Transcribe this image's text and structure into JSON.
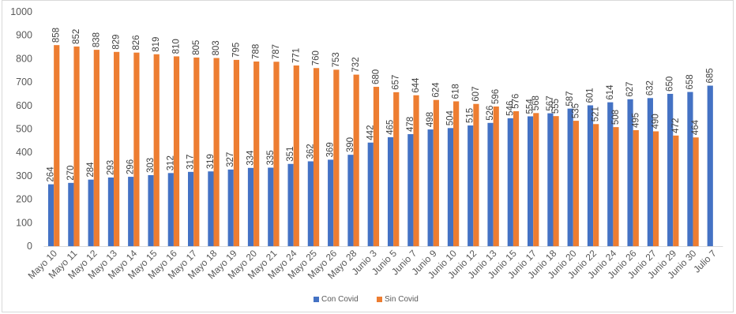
{
  "chart_data": {
    "type": "bar",
    "categories": [
      "Mayo 10",
      "Mayo 11",
      "Mayo 12",
      "Mayo 13",
      "Mayo 14",
      "Mayo 15",
      "Mayo 16",
      "Mayo 17",
      "Mayo 18",
      "Mayo 19",
      "Mayo 20",
      "Mayo 21",
      "Mayo 24",
      "Mayo 25",
      "Mayo 26",
      "Mayo 28",
      "Junio 3",
      "Junio 5",
      "Junio 7",
      "Junio 9",
      "Junio 10",
      "Junio 12",
      "Junio 13",
      "Junio 15",
      "Junio 17",
      "Junio 18",
      "Junio 20",
      "Junio 22",
      "Junio 24",
      "Junio 26",
      "Junio 27",
      "Junio 29",
      "Junio 30",
      "Julio 7"
    ],
    "series": [
      {
        "name": "Con Covid",
        "color": "#4472C4",
        "values": [
          264,
          270,
          284,
          293,
          296,
          303,
          312,
          317,
          319,
          327,
          334,
          335,
          351,
          362,
          369,
          390,
          442,
          465,
          478,
          498,
          504,
          515,
          526,
          546,
          554,
          567,
          587,
          601,
          614,
          627,
          632,
          650,
          658,
          685
        ]
      },
      {
        "name": "Sin Covid",
        "color": "#ED7D31",
        "values": [
          858,
          852,
          838,
          829,
          826,
          819,
          810,
          805,
          803,
          795,
          788,
          787,
          771,
          760,
          753,
          732,
          680,
          657,
          644,
          624,
          618,
          607,
          596,
          576,
          568,
          555,
          535,
          521,
          508,
          495,
          490,
          472,
          464,
          null
        ]
      }
    ],
    "ylim": [
      0,
      1000
    ],
    "yticks": [
      0,
      100,
      200,
      300,
      400,
      500,
      600,
      700,
      800,
      900,
      1000
    ],
    "grid": false,
    "data_labels": true,
    "legend": "bottom"
  }
}
